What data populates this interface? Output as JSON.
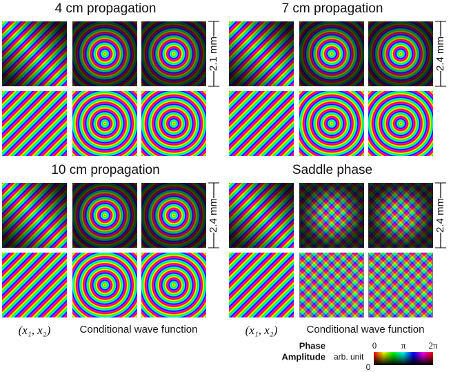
{
  "panels": [
    {
      "title": "4 cm propagation",
      "scale": "2.1 mm"
    },
    {
      "title": "7 cm propagation",
      "scale": "2.4 mm"
    },
    {
      "title": "10 cm propagation",
      "scale": "2.4 mm"
    },
    {
      "title": "Saddle phase",
      "scale": "2.4 mm"
    }
  ],
  "column_labels": [
    {
      "coords": "(x₁, x₂)",
      "wave": "Conditional wave function"
    },
    {
      "coords": "(x₁, x₂)",
      "wave": "Conditional wave function"
    }
  ],
  "colorbar": {
    "phase": "Phase",
    "amplitude": "Amplitude",
    "unit": "arb. unit",
    "phase_ticks": [
      "0",
      "π",
      "2π"
    ],
    "amplitude_min": "0"
  }
}
